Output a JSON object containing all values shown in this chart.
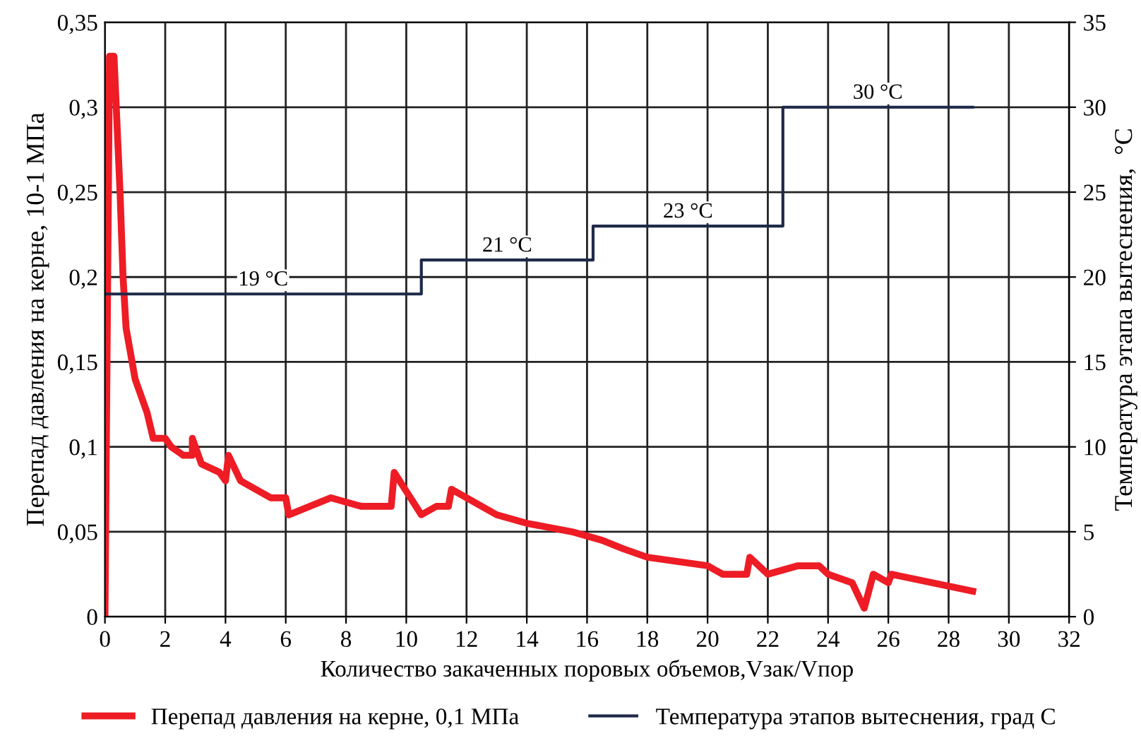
{
  "chart_data": {
    "type": "line",
    "xlabel": "Количество закаченных поровых объемов,Vзак/Vпор",
    "ylabel": "Перепад давления на керне, 10-1 МПа",
    "y2label": "Температура этапа вытеснения,  °C",
    "series": [
      {
        "name": "Перепад давления на керне, 0,1 МПа",
        "color": "#ee1c25",
        "x": [
          0,
          0.15,
          0.3,
          0.5,
          0.6,
          0.7,
          0.8,
          1.0,
          1.2,
          1.4,
          1.6,
          2.0,
          2.2,
          2.6,
          2.9,
          2.9,
          3.2,
          3.8,
          4.0,
          4.1,
          4.5,
          5.5,
          6.0,
          6.1,
          7.5,
          8.5,
          9.5,
          9.6,
          10.5,
          11,
          11.4,
          11.5,
          13,
          14,
          15.5,
          16.5,
          17.2,
          18,
          20,
          20.5,
          21.3,
          21.4,
          22,
          23,
          23.7,
          24,
          24.8,
          25.2,
          25.5,
          26,
          26.1,
          28.8
        ],
        "values": [
          0,
          0.33,
          0.33,
          0.25,
          0.2,
          0.17,
          0.16,
          0.14,
          0.13,
          0.12,
          0.105,
          0.105,
          0.1,
          0.095,
          0.095,
          0.105,
          0.09,
          0.085,
          0.08,
          0.095,
          0.08,
          0.07,
          0.07,
          0.06,
          0.07,
          0.065,
          0.065,
          0.085,
          0.06,
          0.065,
          0.065,
          0.075,
          0.06,
          0.055,
          0.05,
          0.045,
          0.04,
          0.035,
          0.03,
          0.025,
          0.025,
          0.035,
          0.025,
          0.03,
          0.03,
          0.025,
          0.02,
          0.005,
          0.025,
          0.02,
          0.025,
          0.015
        ]
      },
      {
        "name": "Температура этапов вытеснения, град С",
        "color": "#1f2a4a",
        "type": "step",
        "axis": "y2",
        "x": [
          0,
          10.5,
          16.2,
          22.5,
          28.8
        ],
        "values": [
          19,
          21,
          23,
          30,
          30
        ]
      }
    ],
    "annotations": [
      "19 °C",
      "21 °C",
      "23 °C",
      "30 °C"
    ],
    "xlim": [
      0,
      32
    ],
    "xticks": [
      0,
      2,
      4,
      6,
      8,
      10,
      12,
      14,
      16,
      18,
      20,
      22,
      24,
      26,
      28,
      30,
      32
    ],
    "ylim": [
      0,
      0.35
    ],
    "yticks": [
      0,
      {
        "value": 0.05,
        "label": "0,05"
      },
      {
        "value": 0.1,
        "label": "0,1"
      },
      {
        "value": 0.15,
        "label": "0,15"
      },
      {
        "value": 0.2,
        "label": "0,2"
      },
      {
        "value": 0.25,
        "label": "0,25"
      },
      {
        "value": 0.3,
        "label": "0,3"
      },
      {
        "value": 0.35,
        "label": "0,35"
      }
    ],
    "y2lim": [
      0,
      35
    ],
    "y2ticks": [
      0,
      5,
      10,
      15,
      20,
      25,
      30,
      35
    ],
    "grid": true,
    "legend": "bottom"
  }
}
